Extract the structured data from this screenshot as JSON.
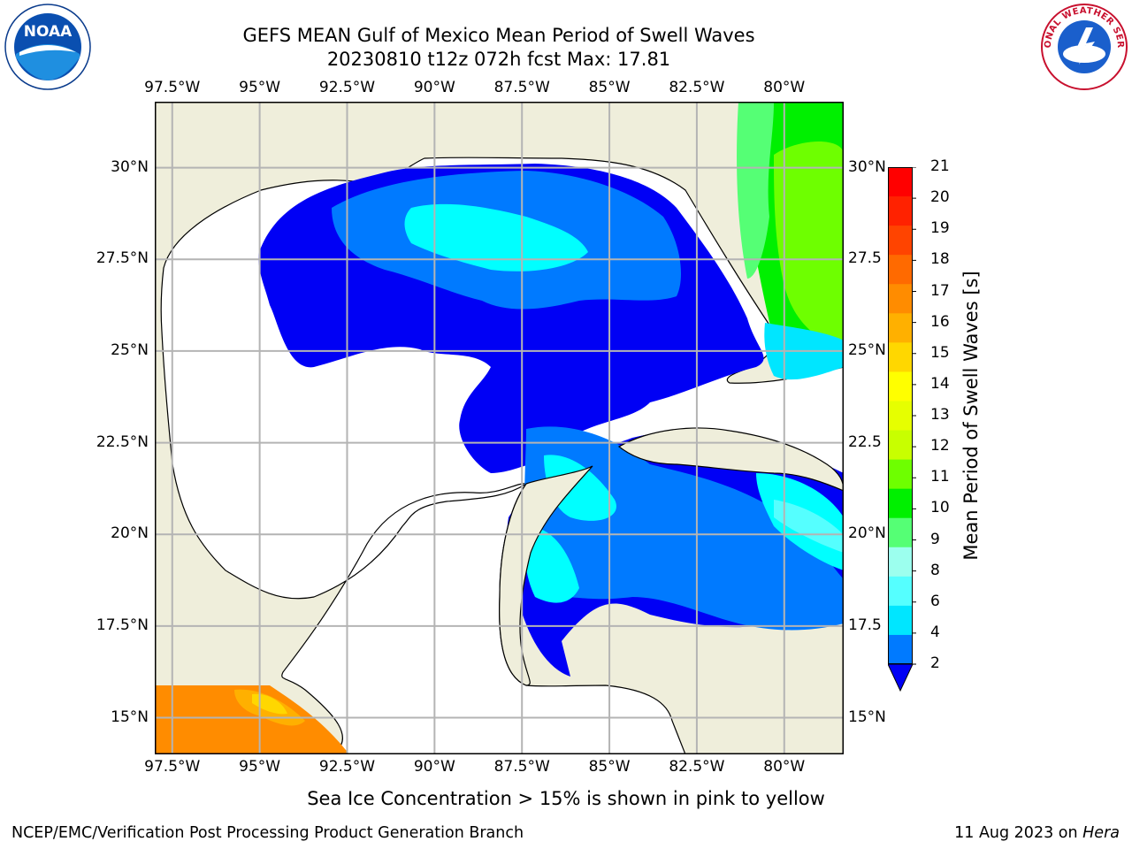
{
  "header": {
    "title_line1": "GEFS MEAN Gulf of Mexico Mean Period of Swell Waves",
    "title_line2": "20230810 t12z 072h fcst   Max: 17.81"
  },
  "logos": {
    "left_text": "NOAA",
    "right_text": "NATIONAL WEATHER SERVICE"
  },
  "map": {
    "lon_labels": [
      "97.5°W",
      "95°W",
      "92.5°W",
      "90°W",
      "87.5°W",
      "85°W",
      "82.5°W",
      "80°W"
    ],
    "lat_labels": [
      "30°N",
      "27.5°N",
      "25°N",
      "22.5°N",
      "20°N",
      "17.5°N",
      "15°N"
    ],
    "right_lat_labels": [
      "30°N",
      "27.5",
      "25°N",
      "22.5",
      "20°N",
      "17.5",
      "15°N"
    ],
    "extent": {
      "lon_min": -98.0,
      "lon_max": -78.3,
      "lat_min": 14.0,
      "lat_max": 31.8
    },
    "colors": {
      "land": "#efeedb",
      "ocean_zero": "#ffffff",
      "grid": "#b4b4b4"
    }
  },
  "colorbar": {
    "label": "Mean Period of Swell Waves [s]",
    "ticks": [
      "21",
      "20",
      "19",
      "18",
      "17",
      "16",
      "15",
      "14",
      "13",
      "12",
      "11",
      "10",
      "9",
      "8",
      "6",
      "4",
      "2"
    ],
    "colors": [
      "#ff0000",
      "#ff2200",
      "#ff4400",
      "#ff6a00",
      "#ff8c00",
      "#ffb000",
      "#ffd700",
      "#ffff00",
      "#e6ff00",
      "#c8ff00",
      "#6eff00",
      "#00f000",
      "#55ff75",
      "#9cffee",
      "#55ffff",
      "#00e6ff",
      "#007aff"
    ],
    "under_color": "#0000f5"
  },
  "footer": {
    "ice_note": "Sea Ice Concentration > 15% is shown in pink to yellow",
    "left": "NCEP/EMC/Verification Post Processing Product Generation Branch",
    "right_prefix": "11 Aug 2023 on ",
    "right_host": "Hera"
  }
}
